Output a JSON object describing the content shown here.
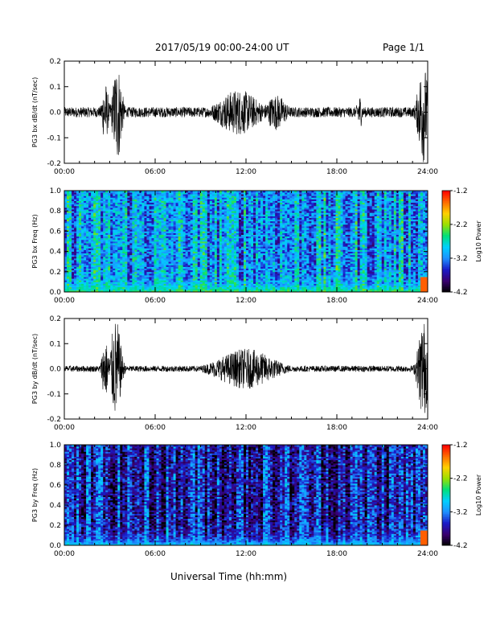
{
  "header": {
    "title": "2017/05/19  00:00-24:00 UT",
    "page": "Page 1/1"
  },
  "x_axis_title": "Universal Time (hh:mm)",
  "colors": {
    "trace": "#000000",
    "colormap": [
      "#000000",
      "#3a0070",
      "#1a1ac8",
      "#1e90ff",
      "#00d0ff",
      "#00e07a",
      "#9be000",
      "#ffd000",
      "#ff6a00",
      "#ff0000"
    ]
  },
  "chart_data": [
    {
      "type": "line",
      "ylabel": "PG3 bx dB/dt (nT/sec)",
      "x_ticks": [
        "00:00",
        "06:00",
        "12:00",
        "18:00",
        "24:00"
      ],
      "y_ticks": [
        "-0.2",
        "-0.1",
        "0.0",
        "0.1",
        "0.2"
      ],
      "xlim": [
        0,
        24
      ],
      "ylim": [
        -0.2,
        0.2
      ],
      "baseline_amplitude": 0.02,
      "bursts": [
        {
          "hour": 2.7,
          "width": 0.25,
          "amplitude": 0.12
        },
        {
          "hour": 3.5,
          "width": 0.35,
          "amplitude": 0.2
        },
        {
          "hour": 11.5,
          "width": 1.6,
          "amplitude": 0.09
        },
        {
          "hour": 14.0,
          "width": 0.8,
          "amplitude": 0.07
        },
        {
          "hour": 19.5,
          "width": 0.2,
          "amplitude": 0.07
        },
        {
          "hour": 23.7,
          "width": 0.4,
          "amplitude": 0.2
        }
      ]
    },
    {
      "type": "heatmap",
      "ylabel": "PG3 bx Freq (Hz)",
      "x_ticks": [
        "00:00",
        "06:00",
        "12:00",
        "18:00",
        "24:00"
      ],
      "y_ticks": [
        "0.0",
        "0.2",
        "0.4",
        "0.6",
        "0.8",
        "1.0"
      ],
      "xlim": [
        0,
        24
      ],
      "ylim": [
        0,
        1.0
      ],
      "colorbar": {
        "label": "Log10 Power",
        "ticks": [
          "-1.2",
          "-2.2",
          "-3.2",
          "-4.2"
        ],
        "range": [
          -4.2,
          -1.2
        ]
      },
      "base_level": -3.1,
      "low_freq_enhancement": -2.4
    },
    {
      "type": "line",
      "ylabel": "PG3 by dB/dt (nT/sec)",
      "x_ticks": [
        "00:00",
        "06:00",
        "12:00",
        "18:00",
        "24:00"
      ],
      "y_ticks": [
        "-0.2",
        "-0.1",
        "0.0",
        "0.1",
        "0.2"
      ],
      "xlim": [
        0,
        24
      ],
      "ylim": [
        -0.2,
        0.2
      ],
      "baseline_amplitude": 0.012,
      "bursts": [
        {
          "hour": 2.7,
          "width": 0.25,
          "amplitude": 0.12
        },
        {
          "hour": 3.4,
          "width": 0.4,
          "amplitude": 0.2
        },
        {
          "hour": 12.0,
          "width": 2.2,
          "amplitude": 0.08
        },
        {
          "hour": 23.7,
          "width": 0.4,
          "amplitude": 0.2
        }
      ]
    },
    {
      "type": "heatmap",
      "ylabel": "PG3 by Freq (Hz)",
      "x_ticks": [
        "00:00",
        "06:00",
        "12:00",
        "18:00",
        "24:00"
      ],
      "y_ticks": [
        "0.0",
        "0.2",
        "0.4",
        "0.6",
        "0.8",
        "1.0"
      ],
      "xlim": [
        0,
        24
      ],
      "ylim": [
        0,
        1.0
      ],
      "colorbar": {
        "label": "Log10 Power",
        "ticks": [
          "-1.2",
          "-2.2",
          "-3.2",
          "-4.2"
        ],
        "range": [
          -4.2,
          -1.2
        ]
      },
      "base_level": -3.6,
      "low_freq_enhancement": -2.8
    }
  ]
}
